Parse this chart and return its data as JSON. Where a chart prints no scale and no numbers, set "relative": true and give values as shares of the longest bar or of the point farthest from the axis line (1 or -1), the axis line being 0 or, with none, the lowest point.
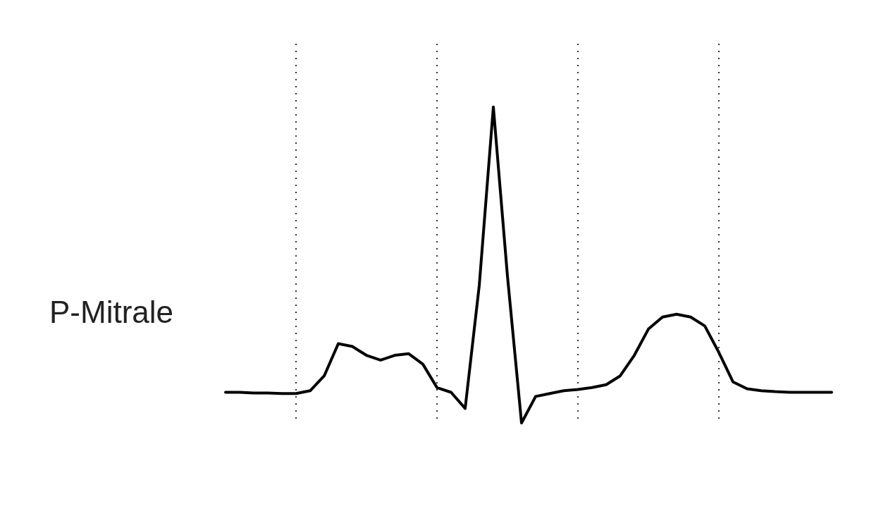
{
  "chart_data": {
    "type": "line",
    "relative": true,
    "grid": true,
    "marker": "none",
    "line_style": "solid",
    "annotations": [
      "P-Mitrale"
    ],
    "categories": [
      null,
      null,
      null,
      null,
      null,
      null,
      null,
      null,
      null,
      null,
      null,
      null,
      null,
      null,
      null,
      null,
      null,
      null,
      null,
      null,
      null,
      null,
      null,
      null,
      null,
      null,
      null,
      null,
      null,
      null,
      null,
      null,
      null,
      null,
      null,
      null,
      null,
      null,
      null,
      null,
      null,
      null,
      null,
      null
    ],
    "series": [
      {
        "color": "#000000",
        "values": [
          0.097,
          0.097,
          0.095,
          0.095,
          0.093,
          0.093,
          0.102,
          0.149,
          0.251,
          0.242,
          0.214,
          0.199,
          0.214,
          0.219,
          0.186,
          0.112,
          0.097,
          0.046,
          0.435,
          1,
          0.465,
          0,
          0.084,
          0.093,
          0.102,
          0.106,
          0.112,
          0.121,
          0.149,
          0.214,
          0.297,
          0.335,
          0.344,
          0.335,
          0.307,
          0.223,
          0.13,
          0.108,
          0.102,
          0.099,
          0.097,
          0.097,
          0.097,
          0.097
        ]
      }
    ]
  }
}
